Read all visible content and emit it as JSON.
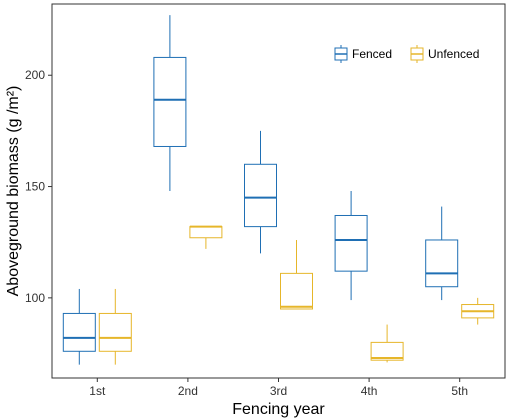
{
  "chart_data": {
    "type": "boxplot",
    "xlabel": "Fencing year",
    "ylabel": "Aboveground biomass (g /m²)",
    "categories": [
      "1st",
      "2nd",
      "3rd",
      "4th",
      "5th"
    ],
    "yticks": [
      100,
      150,
      200
    ],
    "ylim": [
      64,
      232
    ],
    "grid": false,
    "legend_position": "top-right",
    "series": [
      {
        "name": "Fenced",
        "color": "#1f6fb4",
        "boxes": [
          {
            "category": "1st",
            "min": 70,
            "q1": 76,
            "median": 82,
            "q3": 93,
            "max": 104
          },
          {
            "category": "2nd",
            "min": 148,
            "q1": 168,
            "median": 189,
            "q3": 208,
            "max": 227
          },
          {
            "category": "3rd",
            "min": 120,
            "q1": 132,
            "median": 145,
            "q3": 160,
            "max": 175
          },
          {
            "category": "4th",
            "min": 99,
            "q1": 112,
            "median": 126,
            "q3": 137,
            "max": 148
          },
          {
            "category": "5th",
            "min": 99,
            "q1": 105,
            "median": 111,
            "q3": 126,
            "max": 141
          }
        ]
      },
      {
        "name": "Unfenced",
        "color": "#e6b62a",
        "boxes": [
          {
            "category": "1st",
            "min": 70,
            "q1": 76,
            "median": 82,
            "q3": 93,
            "max": 104
          },
          {
            "category": "2nd",
            "min": 122,
            "q1": 127,
            "median": 132,
            "q3": 132,
            "max": 132
          },
          {
            "category": "3rd",
            "min": 95,
            "q1": 95,
            "median": 96,
            "q3": 111,
            "max": 126
          },
          {
            "category": "4th",
            "min": 71,
            "q1": 72,
            "median": 73,
            "q3": 80,
            "max": 88
          },
          {
            "category": "5th",
            "min": 88,
            "q1": 91,
            "median": 94,
            "q3": 97,
            "max": 100
          }
        ]
      }
    ]
  }
}
